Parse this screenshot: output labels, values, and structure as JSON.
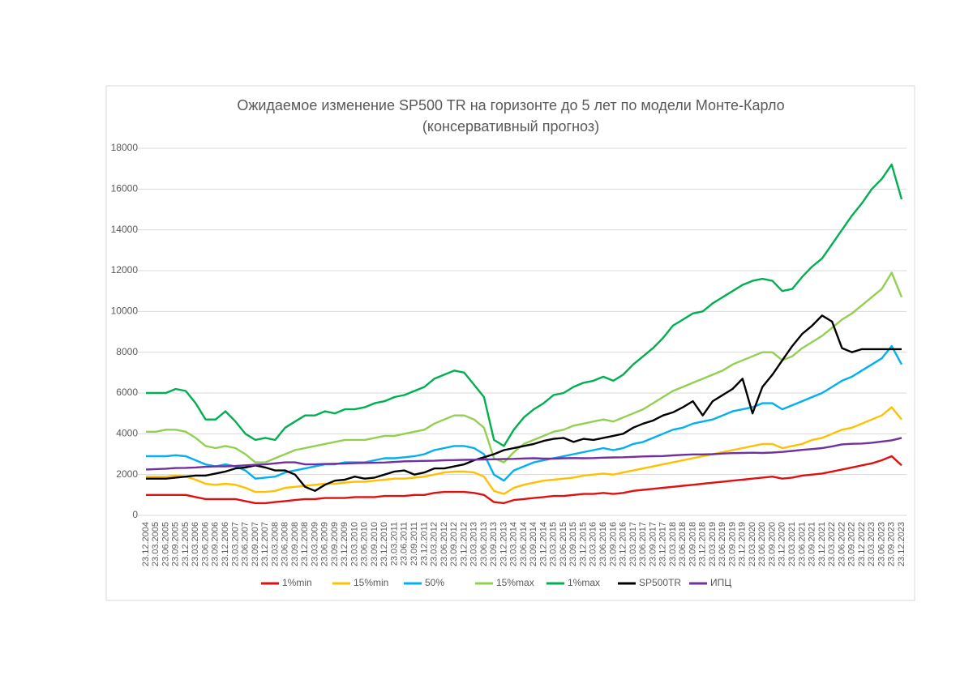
{
  "chart_data": {
    "type": "line",
    "title": "Ожидаемое изменение SP500 TR на горизонте до 5 лет по модели Монте-Карло",
    "subtitle": "(консервативный прогноз)",
    "categories": [
      "23.12.2004",
      "23.03.2005",
      "23.06.2005",
      "23.09.2005",
      "23.12.2005",
      "23.03.2006",
      "23.06.2006",
      "23.09.2006",
      "23.12.2006",
      "23.03.2007",
      "23.06.2007",
      "23.09.2007",
      "23.12.2007",
      "23.03.2008",
      "23.06.2008",
      "23.09.2008",
      "23.12.2008",
      "23.03.2009",
      "23.06.2009",
      "23.09.2009",
      "23.12.2009",
      "23.03.2010",
      "23.06.2010",
      "23.09.2010",
      "23.12.2010",
      "23.03.2011",
      "23.06.2011",
      "23.09.2011",
      "23.12.2011",
      "23.03.2012",
      "23.06.2012",
      "23.09.2012",
      "23.12.2012",
      "23.03.2013",
      "23.06.2013",
      "23.09.2013",
      "23.12.2013",
      "23.03.2014",
      "23.06.2014",
      "23.09.2014",
      "23.12.2014",
      "23.03.2015",
      "23.06.2015",
      "23.09.2015",
      "23.12.2015",
      "23.03.2016",
      "23.06.2016",
      "23.09.2016",
      "23.12.2016",
      "23.03.2017",
      "23.06.2017",
      "23.09.2017",
      "23.12.2017",
      "23.03.2018",
      "23.06.2018",
      "23.09.2018",
      "23.12.2018",
      "23.03.2019",
      "23.06.2019",
      "23.09.2019",
      "23.12.2019",
      "23.03.2020",
      "23.06.2020",
      "23.09.2020",
      "23.12.2020",
      "23.03.2021",
      "23.06.2021",
      "23.09.2021",
      "23.12.2021",
      "23.03.2022",
      "23.06.2022",
      "23.09.2022",
      "23.12.2022",
      "23.03.2023",
      "23.06.2023",
      "23.09.2023",
      "23.12.2023"
    ],
    "series": [
      {
        "name": "1%min",
        "color": "#e01010",
        "values": [
          1000,
          1000,
          1000,
          1000,
          1000,
          900,
          800,
          800,
          800,
          800,
          700,
          600,
          600,
          650,
          700,
          750,
          800,
          800,
          850,
          850,
          850,
          900,
          900,
          900,
          950,
          950,
          950,
          1000,
          1000,
          1100,
          1150,
          1150,
          1150,
          1100,
          1000,
          650,
          600,
          750,
          800,
          850,
          900,
          950,
          950,
          1000,
          1050,
          1050,
          1100,
          1050,
          1100,
          1200,
          1250,
          1300,
          1350,
          1400,
          1450,
          1500,
          1550,
          1600,
          1650,
          1700,
          1750,
          1800,
          1850,
          1900,
          1800,
          1850,
          1950,
          2000,
          2050,
          2150,
          2250,
          2350,
          2450,
          2550,
          2700,
          2900,
          2450
        ]
      },
      {
        "name": "15%min",
        "color": "#ffc000",
        "values": [
          1900,
          1900,
          1900,
          1950,
          1900,
          1750,
          1550,
          1500,
          1550,
          1500,
          1350,
          1150,
          1150,
          1200,
          1350,
          1400,
          1450,
          1500,
          1550,
          1550,
          1600,
          1650,
          1650,
          1700,
          1750,
          1800,
          1800,
          1850,
          1900,
          2000,
          2100,
          2150,
          2150,
          2100,
          1900,
          1200,
          1050,
          1350,
          1500,
          1600,
          1700,
          1750,
          1800,
          1850,
          1950,
          2000,
          2050,
          2000,
          2100,
          2200,
          2300,
          2400,
          2500,
          2600,
          2700,
          2800,
          2900,
          3000,
          3100,
          3200,
          3300,
          3400,
          3500,
          3500,
          3300,
          3400,
          3500,
          3700,
          3800,
          4000,
          4200,
          4300,
          4500,
          4700,
          4900,
          5300,
          4700
        ]
      },
      {
        "name": "50%",
        "color": "#00b0f0",
        "values": [
          2900,
          2900,
          2900,
          2950,
          2900,
          2700,
          2500,
          2400,
          2500,
          2400,
          2200,
          1800,
          1850,
          1900,
          2100,
          2200,
          2300,
          2400,
          2500,
          2500,
          2600,
          2600,
          2600,
          2700,
          2800,
          2800,
          2850,
          2900,
          3000,
          3200,
          3300,
          3400,
          3400,
          3300,
          3000,
          2000,
          1700,
          2200,
          2400,
          2600,
          2700,
          2800,
          2900,
          3000,
          3100,
          3200,
          3300,
          3200,
          3300,
          3500,
          3600,
          3800,
          4000,
          4200,
          4300,
          4500,
          4600,
          4700,
          4900,
          5100,
          5200,
          5300,
          5500,
          5500,
          5200,
          5400,
          5600,
          5800,
          6000,
          6300,
          6600,
          6800,
          7100,
          7400,
          7700,
          8300,
          7400
        ]
      },
      {
        "name": "15%max",
        "color": "#92d050",
        "values": [
          4100,
          4100,
          4200,
          4200,
          4100,
          3800,
          3400,
          3300,
          3400,
          3300,
          3000,
          2600,
          2600,
          2800,
          3000,
          3200,
          3300,
          3400,
          3500,
          3600,
          3700,
          3700,
          3700,
          3800,
          3900,
          3900,
          4000,
          4100,
          4200,
          4500,
          4700,
          4900,
          4900,
          4700,
          4300,
          2800,
          2600,
          3100,
          3500,
          3700,
          3900,
          4100,
          4200,
          4400,
          4500,
          4600,
          4700,
          4600,
          4800,
          5000,
          5200,
          5500,
          5800,
          6100,
          6300,
          6500,
          6700,
          6900,
          7100,
          7400,
          7600,
          7800,
          8000,
          8000,
          7600,
          7800,
          8200,
          8500,
          8800,
          9200,
          9600,
          9900,
          10300,
          10700,
          11100,
          11900,
          10700
        ]
      },
      {
        "name": "1%max",
        "color": "#00b050",
        "values": [
          6000,
          6000,
          6000,
          6200,
          6100,
          5500,
          4700,
          4700,
          5100,
          4600,
          4000,
          3700,
          3800,
          3700,
          4300,
          4600,
          4900,
          4900,
          5100,
          5000,
          5200,
          5200,
          5300,
          5500,
          5600,
          5800,
          5900,
          6100,
          6300,
          6700,
          6900,
          7100,
          7000,
          6400,
          5800,
          3700,
          3400,
          4200,
          4800,
          5200,
          5500,
          5900,
          6000,
          6300,
          6500,
          6600,
          6800,
          6600,
          6900,
          7400,
          7800,
          8200,
          8700,
          9300,
          9600,
          9900,
          10000,
          10400,
          10700,
          11000,
          11300,
          11500,
          11600,
          11500,
          11000,
          11100,
          11700,
          12200,
          12600,
          13300,
          14000,
          14700,
          15300,
          16000,
          16500,
          17200,
          15500
        ]
      },
      {
        "name": "SP500TR",
        "color": "#000000",
        "values": [
          1800,
          1800,
          1800,
          1850,
          1900,
          1950,
          1950,
          2050,
          2150,
          2300,
          2350,
          2450,
          2350,
          2200,
          2200,
          2000,
          1400,
          1200,
          1500,
          1700,
          1750,
          1900,
          1800,
          1850,
          2000,
          2150,
          2200,
          2000,
          2100,
          2300,
          2300,
          2400,
          2500,
          2700,
          2850,
          3000,
          3200,
          3300,
          3400,
          3500,
          3650,
          3750,
          3800,
          3600,
          3750,
          3700,
          3800,
          3900,
          4000,
          4300,
          4500,
          4650,
          4900,
          5050,
          5300,
          5600,
          4900,
          5600,
          5900,
          6200,
          6700,
          5000,
          6300,
          6900,
          7600,
          8300,
          8900,
          9300,
          9800,
          9500,
          8200,
          8000,
          8150,
          8150,
          8150,
          8150,
          8150
        ]
      },
      {
        "name": "ИПЦ",
        "color": "#7030a0",
        "values": [
          2250,
          2270,
          2290,
          2320,
          2330,
          2350,
          2380,
          2400,
          2400,
          2420,
          2450,
          2480,
          2500,
          2550,
          2600,
          2600,
          2500,
          2500,
          2520,
          2530,
          2540,
          2560,
          2570,
          2580,
          2590,
          2620,
          2650,
          2660,
          2670,
          2680,
          2700,
          2710,
          2720,
          2730,
          2740,
          2750,
          2760,
          2770,
          2790,
          2800,
          2780,
          2780,
          2800,
          2810,
          2800,
          2810,
          2830,
          2840,
          2850,
          2870,
          2890,
          2900,
          2910,
          2940,
          2970,
          2990,
          2990,
          3000,
          3030,
          3050,
          3060,
          3070,
          3060,
          3080,
          3110,
          3160,
          3210,
          3250,
          3300,
          3380,
          3480,
          3510,
          3520,
          3560,
          3620,
          3680,
          3800
        ]
      }
    ],
    "ylim": [
      0,
      18000
    ],
    "yticks": [
      0,
      2000,
      4000,
      6000,
      8000,
      10000,
      12000,
      14000,
      16000,
      18000
    ],
    "grid": true,
    "legend": "bottom"
  }
}
